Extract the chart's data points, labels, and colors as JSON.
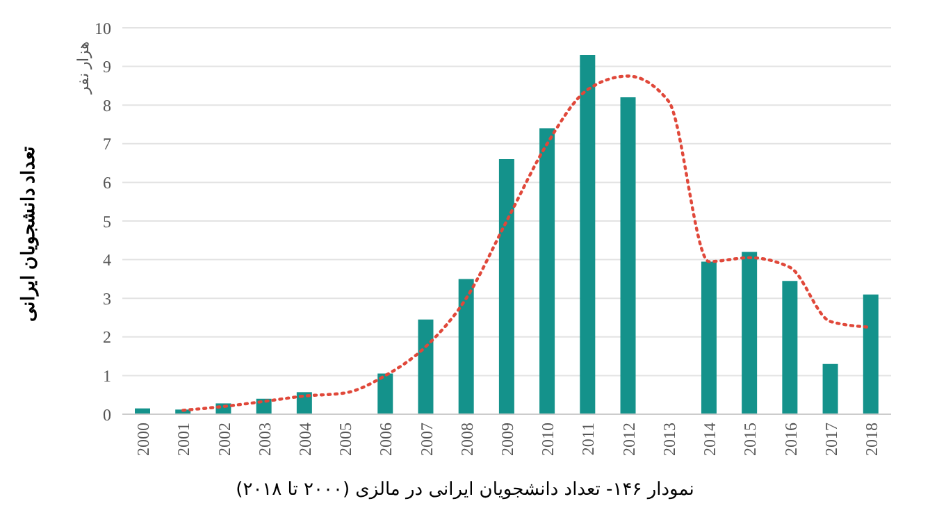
{
  "chart_data": {
    "type": "bar",
    "title": "نمودار ۱۴۶- تعداد دانشجویان ایرانی در مالزی (۲۰۰۰ تا ۲۰۱۸)",
    "ylabel": "تعداد دانشجویان ایرانی",
    "annotations": [
      "هزار نفر"
    ],
    "categories": [
      "2000",
      "2001",
      "2002",
      "2003",
      "2004",
      "2005",
      "2006",
      "2007",
      "2008",
      "2009",
      "2010",
      "2011",
      "2012",
      "2013",
      "2014",
      "2015",
      "2016",
      "2017",
      "2018"
    ],
    "series": [
      {
        "color": "#14928b",
        "values": [
          0.15,
          0.12,
          0.28,
          0.4,
          0.57,
          null,
          1.05,
          2.45,
          3.5,
          6.6,
          7.4,
          9.3,
          8.2,
          null,
          3.95,
          4.2,
          3.45,
          1.3,
          3.1
        ]
      },
      {
        "type": "line",
        "color": "#e0483a",
        "values": [
          null,
          0.1,
          0.2,
          0.33,
          0.47,
          0.55,
          1.0,
          1.75,
          3.0,
          5.0,
          7.0,
          8.4,
          8.75,
          8.1,
          3.95,
          4.05,
          3.8,
          2.4,
          2.25
        ]
      }
    ],
    "ylim": [
      0,
      10
    ],
    "yticks": [
      0,
      1,
      2,
      3,
      4,
      5,
      6,
      7,
      8,
      9,
      10
    ],
    "grid": "y",
    "line_style": "dotted"
  }
}
